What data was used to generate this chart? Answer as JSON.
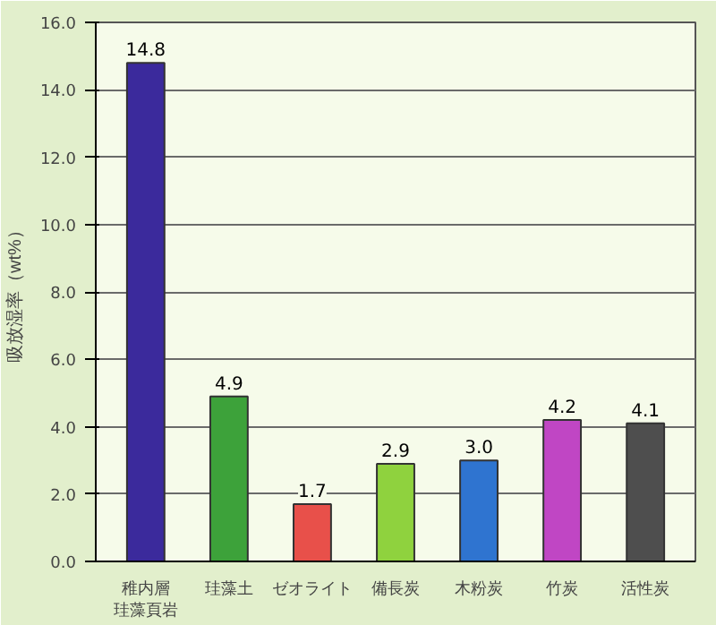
{
  "chart_data": {
    "type": "bar",
    "ylabel": "吸放湿率（wt%）",
    "categories": [
      "稚内層珪藻頁岩",
      "珪藻土",
      "ゼオライト",
      "備長炭",
      "木粉炭",
      "竹炭",
      "活性炭"
    ],
    "values": [
      14.8,
      4.9,
      1.7,
      2.9,
      3.0,
      4.2,
      4.1
    ],
    "colors": [
      "#3b2a9c",
      "#3da23a",
      "#e8504a",
      "#8fd23e",
      "#2f74d0",
      "#c046c4",
      "#4e4e4e"
    ],
    "ylim": [
      0,
      16
    ],
    "yticks": [
      {
        "value": 0,
        "label": "0.0"
      },
      {
        "value": 2,
        "label": "2.0"
      },
      {
        "value": 4,
        "label": "4.0"
      },
      {
        "value": 6,
        "label": "6.0"
      },
      {
        "value": 8,
        "label": "8.0"
      },
      {
        "value": 10,
        "label": "10.0"
      },
      {
        "value": 12,
        "label": "12.0"
      },
      {
        "value": 14,
        "label": "14.0"
      },
      {
        "value": 16,
        "label": "16.0"
      }
    ],
    "value_labels": [
      "14.8",
      "4.9",
      "1.7",
      "2.9",
      "3.0",
      "4.2",
      "4.1"
    ],
    "grid": "y"
  }
}
